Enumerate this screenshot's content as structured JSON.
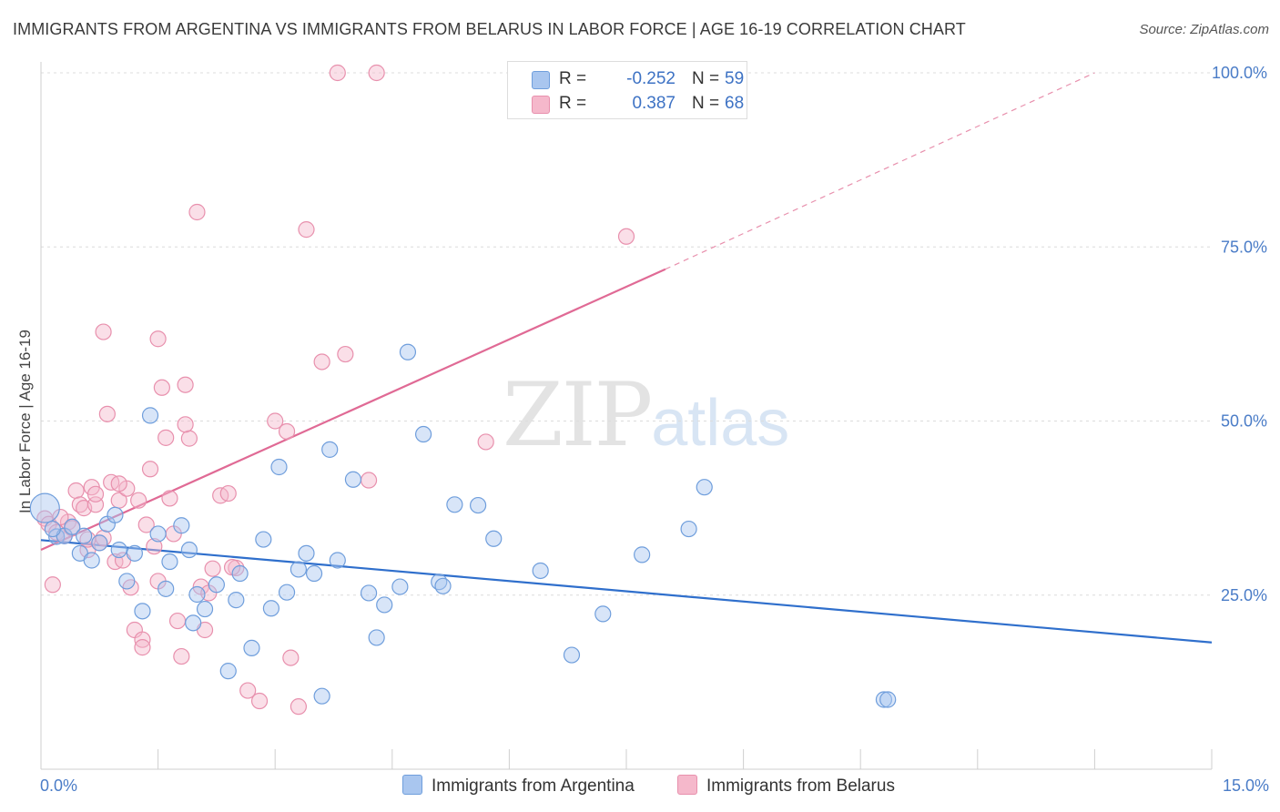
{
  "header": {
    "title": "IMMIGRANTS FROM ARGENTINA VS IMMIGRANTS FROM BELARUS IN LABOR FORCE | AGE 16-19 CORRELATION CHART",
    "source": "Source: ZipAtlas.com"
  },
  "watermark": {
    "zip": "ZIP",
    "atlas": "atlas"
  },
  "legend": {
    "r_label": "R =",
    "n_label": "N =",
    "argentina": {
      "r": "-0.252",
      "n": "59"
    },
    "belarus": {
      "r": "0.387",
      "n": "68"
    }
  },
  "bottom_legend": {
    "argentina": "Immigrants from Argentina",
    "belarus": "Immigrants from Belarus"
  },
  "colors": {
    "argentina_fill": "#a9c6ef",
    "argentina_stroke": "#6f9edc",
    "argentina_line": "#2f6fcc",
    "belarus_fill": "#f5b8cb",
    "belarus_stroke": "#e890ad",
    "belarus_line": "#e06a95"
  },
  "chart_data": {
    "type": "scatter",
    "title": "IMMIGRANTS FROM ARGENTINA VS IMMIGRANTS FROM BELARUS IN LABOR FORCE | AGE 16-19 CORRELATION CHART",
    "xlabel": "",
    "ylabel": "In Labor Force | Age 16-19",
    "xlim": [
      0,
      15
    ],
    "ylim": [
      0,
      100
    ],
    "x_tick_labels": [
      "0.0%",
      "15.0%"
    ],
    "y_ticks": [
      25,
      50,
      75,
      100
    ],
    "y_tick_labels": [
      "25.0%",
      "50.0%",
      "75.0%",
      "100.0%"
    ],
    "grid": true,
    "series": [
      {
        "name": "Immigrants from Argentina",
        "r": -0.252,
        "n": 59,
        "trend": {
          "x0": 0,
          "y0": 32.9,
          "x1": 15,
          "y1": 18.2
        },
        "points": [
          [
            0.05,
            37.5
          ],
          [
            0.2,
            33.4
          ],
          [
            0.3,
            33.5
          ],
          [
            0.4,
            34.8
          ],
          [
            0.5,
            31.0
          ],
          [
            0.55,
            33.5
          ],
          [
            0.65,
            30.0
          ],
          [
            0.85,
            35.2
          ],
          [
            0.95,
            36.5
          ],
          [
            1.0,
            31.5
          ],
          [
            1.1,
            27.0
          ],
          [
            1.2,
            31.0
          ],
          [
            1.3,
            22.7
          ],
          [
            1.4,
            50.8
          ],
          [
            1.5,
            33.8
          ],
          [
            1.6,
            25.9
          ],
          [
            1.65,
            29.8
          ],
          [
            1.8,
            35.0
          ],
          [
            1.9,
            31.5
          ],
          [
            2.0,
            25.1
          ],
          [
            2.1,
            23.0
          ],
          [
            2.25,
            26.5
          ],
          [
            2.4,
            14.1
          ],
          [
            2.5,
            24.3
          ],
          [
            2.55,
            28.1
          ],
          [
            2.7,
            17.4
          ],
          [
            2.85,
            33.0
          ],
          [
            2.95,
            23.1
          ],
          [
            3.05,
            43.4
          ],
          [
            3.15,
            25.4
          ],
          [
            3.3,
            28.7
          ],
          [
            3.4,
            31.0
          ],
          [
            3.5,
            28.1
          ],
          [
            3.6,
            10.5
          ],
          [
            3.7,
            45.9
          ],
          [
            3.8,
            30.0
          ],
          [
            4.0,
            41.6
          ],
          [
            4.2,
            25.3
          ],
          [
            4.3,
            18.9
          ],
          [
            4.4,
            23.6
          ],
          [
            4.6,
            26.2
          ],
          [
            4.7,
            59.9
          ],
          [
            4.9,
            48.1
          ],
          [
            5.1,
            26.9
          ],
          [
            5.15,
            26.3
          ],
          [
            5.3,
            38.0
          ],
          [
            5.6,
            37.9
          ],
          [
            5.8,
            33.1
          ],
          [
            6.4,
            28.5
          ],
          [
            6.8,
            16.4
          ],
          [
            7.2,
            22.3
          ],
          [
            7.7,
            30.8
          ],
          [
            8.3,
            34.5
          ],
          [
            8.5,
            40.5
          ],
          [
            10.8,
            10.0
          ],
          [
            10.85,
            10.0
          ],
          [
            0.15,
            34.5
          ],
          [
            0.75,
            32.5
          ],
          [
            1.95,
            21.0
          ]
        ]
      },
      {
        "name": "Immigrants from Belarus",
        "r": 0.387,
        "n": 68,
        "trend": {
          "x0": 0,
          "y0": 31.5,
          "x1": 8.0,
          "y1": 71.8
        },
        "trend_extension": {
          "x0": 8.0,
          "y0": 71.8,
          "x1": 13.5,
          "y1": 100
        },
        "points": [
          [
            0.05,
            36.0
          ],
          [
            0.1,
            35.2
          ],
          [
            0.15,
            26.5
          ],
          [
            0.2,
            34.0
          ],
          [
            0.3,
            33.5
          ],
          [
            0.35,
            35.5
          ],
          [
            0.45,
            40.0
          ],
          [
            0.5,
            38.0
          ],
          [
            0.55,
            37.5
          ],
          [
            0.6,
            31.5
          ],
          [
            0.65,
            40.5
          ],
          [
            0.7,
            38.0
          ],
          [
            0.75,
            32.5
          ],
          [
            0.8,
            62.8
          ],
          [
            0.85,
            51.0
          ],
          [
            0.9,
            41.2
          ],
          [
            0.95,
            29.8
          ],
          [
            1.0,
            38.6
          ],
          [
            1.05,
            30.0
          ],
          [
            1.1,
            40.3
          ],
          [
            1.15,
            26.1
          ],
          [
            1.2,
            20.0
          ],
          [
            1.25,
            38.6
          ],
          [
            1.3,
            18.6
          ],
          [
            1.35,
            35.1
          ],
          [
            1.4,
            43.1
          ],
          [
            1.45,
            32.0
          ],
          [
            1.5,
            61.8
          ],
          [
            1.55,
            54.8
          ],
          [
            1.6,
            47.6
          ],
          [
            1.65,
            38.9
          ],
          [
            1.7,
            33.8
          ],
          [
            1.75,
            21.3
          ],
          [
            1.8,
            16.2
          ],
          [
            1.85,
            55.2
          ],
          [
            1.9,
            47.5
          ],
          [
            2.0,
            80.0
          ],
          [
            2.05,
            26.2
          ],
          [
            2.1,
            20.0
          ],
          [
            2.15,
            25.3
          ],
          [
            2.2,
            28.8
          ],
          [
            2.3,
            39.3
          ],
          [
            2.4,
            39.6
          ],
          [
            2.5,
            28.9
          ],
          [
            2.65,
            11.3
          ],
          [
            2.8,
            9.8
          ],
          [
            3.0,
            50.0
          ],
          [
            3.2,
            16.0
          ],
          [
            3.3,
            9.0
          ],
          [
            3.4,
            77.5
          ],
          [
            3.6,
            58.5
          ],
          [
            3.8,
            100.0
          ],
          [
            3.9,
            59.6
          ],
          [
            4.2,
            41.5
          ],
          [
            4.3,
            100.0
          ],
          [
            5.7,
            47.0
          ],
          [
            7.5,
            76.5
          ],
          [
            0.25,
            36.2
          ],
          [
            0.4,
            34.6
          ],
          [
            0.6,
            33.0
          ],
          [
            1.0,
            41.0
          ],
          [
            1.3,
            17.5
          ],
          [
            0.8,
            33.2
          ],
          [
            1.85,
            49.5
          ],
          [
            2.45,
            29.0
          ],
          [
            3.15,
            48.5
          ],
          [
            1.5,
            27.0
          ],
          [
            0.7,
            39.5
          ]
        ]
      }
    ]
  }
}
